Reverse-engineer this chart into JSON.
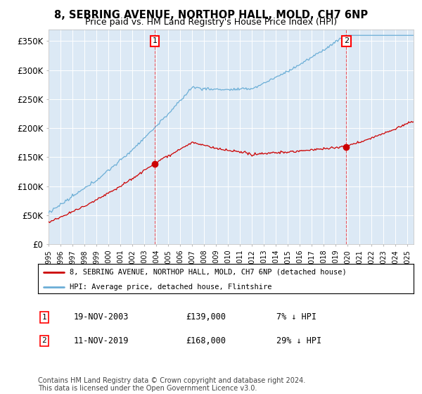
{
  "title": "8, SEBRING AVENUE, NORTHOP HALL, MOLD, CH7 6NP",
  "subtitle": "Price paid vs. HM Land Registry's House Price Index (HPI)",
  "ylabel_ticks": [
    "£0",
    "£50K",
    "£100K",
    "£150K",
    "£200K",
    "£250K",
    "£300K",
    "£350K"
  ],
  "ytick_values": [
    0,
    50000,
    100000,
    150000,
    200000,
    250000,
    300000,
    350000
  ],
  "ylim": [
    0,
    370000
  ],
  "xlim_start": 1995.0,
  "xlim_end": 2025.5,
  "plot_bg_color": "#dce9f5",
  "hpi_line_color": "#6baed6",
  "price_line_color": "#cc0000",
  "sale1_price": 139000,
  "sale1_x": 2003.88,
  "sale2_price": 168000,
  "sale2_x": 2019.88,
  "legend_label1": "8, SEBRING AVENUE, NORTHOP HALL, MOLD, CH7 6NP (detached house)",
  "legend_label2": "HPI: Average price, detached house, Flintshire",
  "footnote": "Contains HM Land Registry data © Crown copyright and database right 2024.\nThis data is licensed under the Open Government Licence v3.0."
}
